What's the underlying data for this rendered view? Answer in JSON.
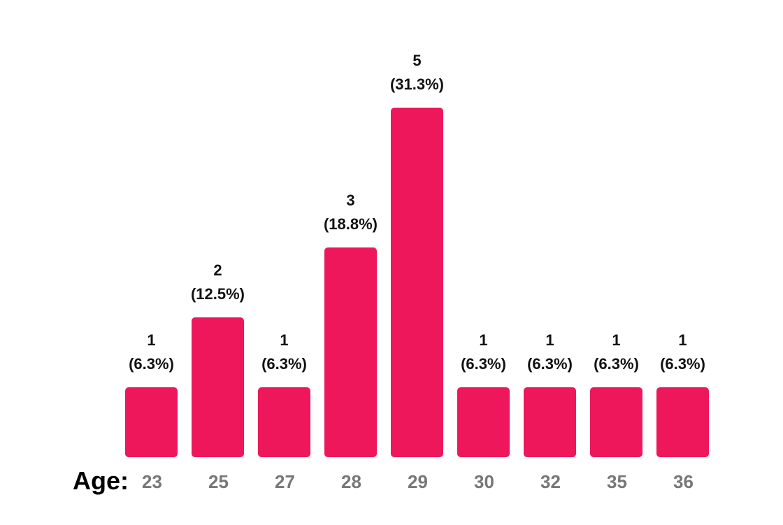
{
  "colors": {
    "bar": "#ee175b",
    "tick_label": "#777777",
    "value_label": "#111111"
  },
  "chart_data": {
    "type": "bar",
    "xlabel": "Age:",
    "ylabel": "",
    "title": "",
    "categories": [
      "23",
      "25",
      "27",
      "28",
      "29",
      "30",
      "32",
      "35",
      "36"
    ],
    "values": [
      1,
      2,
      1,
      3,
      5,
      1,
      1,
      1,
      1
    ],
    "percent_labels": [
      "(6.3%)",
      "(12.5%)",
      "(6.3%)",
      "(18.8%)",
      "(31.3%)",
      "(6.3%)",
      "(6.3%)",
      "(6.3%)",
      "(6.3%)"
    ],
    "ylim": [
      0,
      5
    ],
    "grid": false,
    "legend": "none"
  }
}
